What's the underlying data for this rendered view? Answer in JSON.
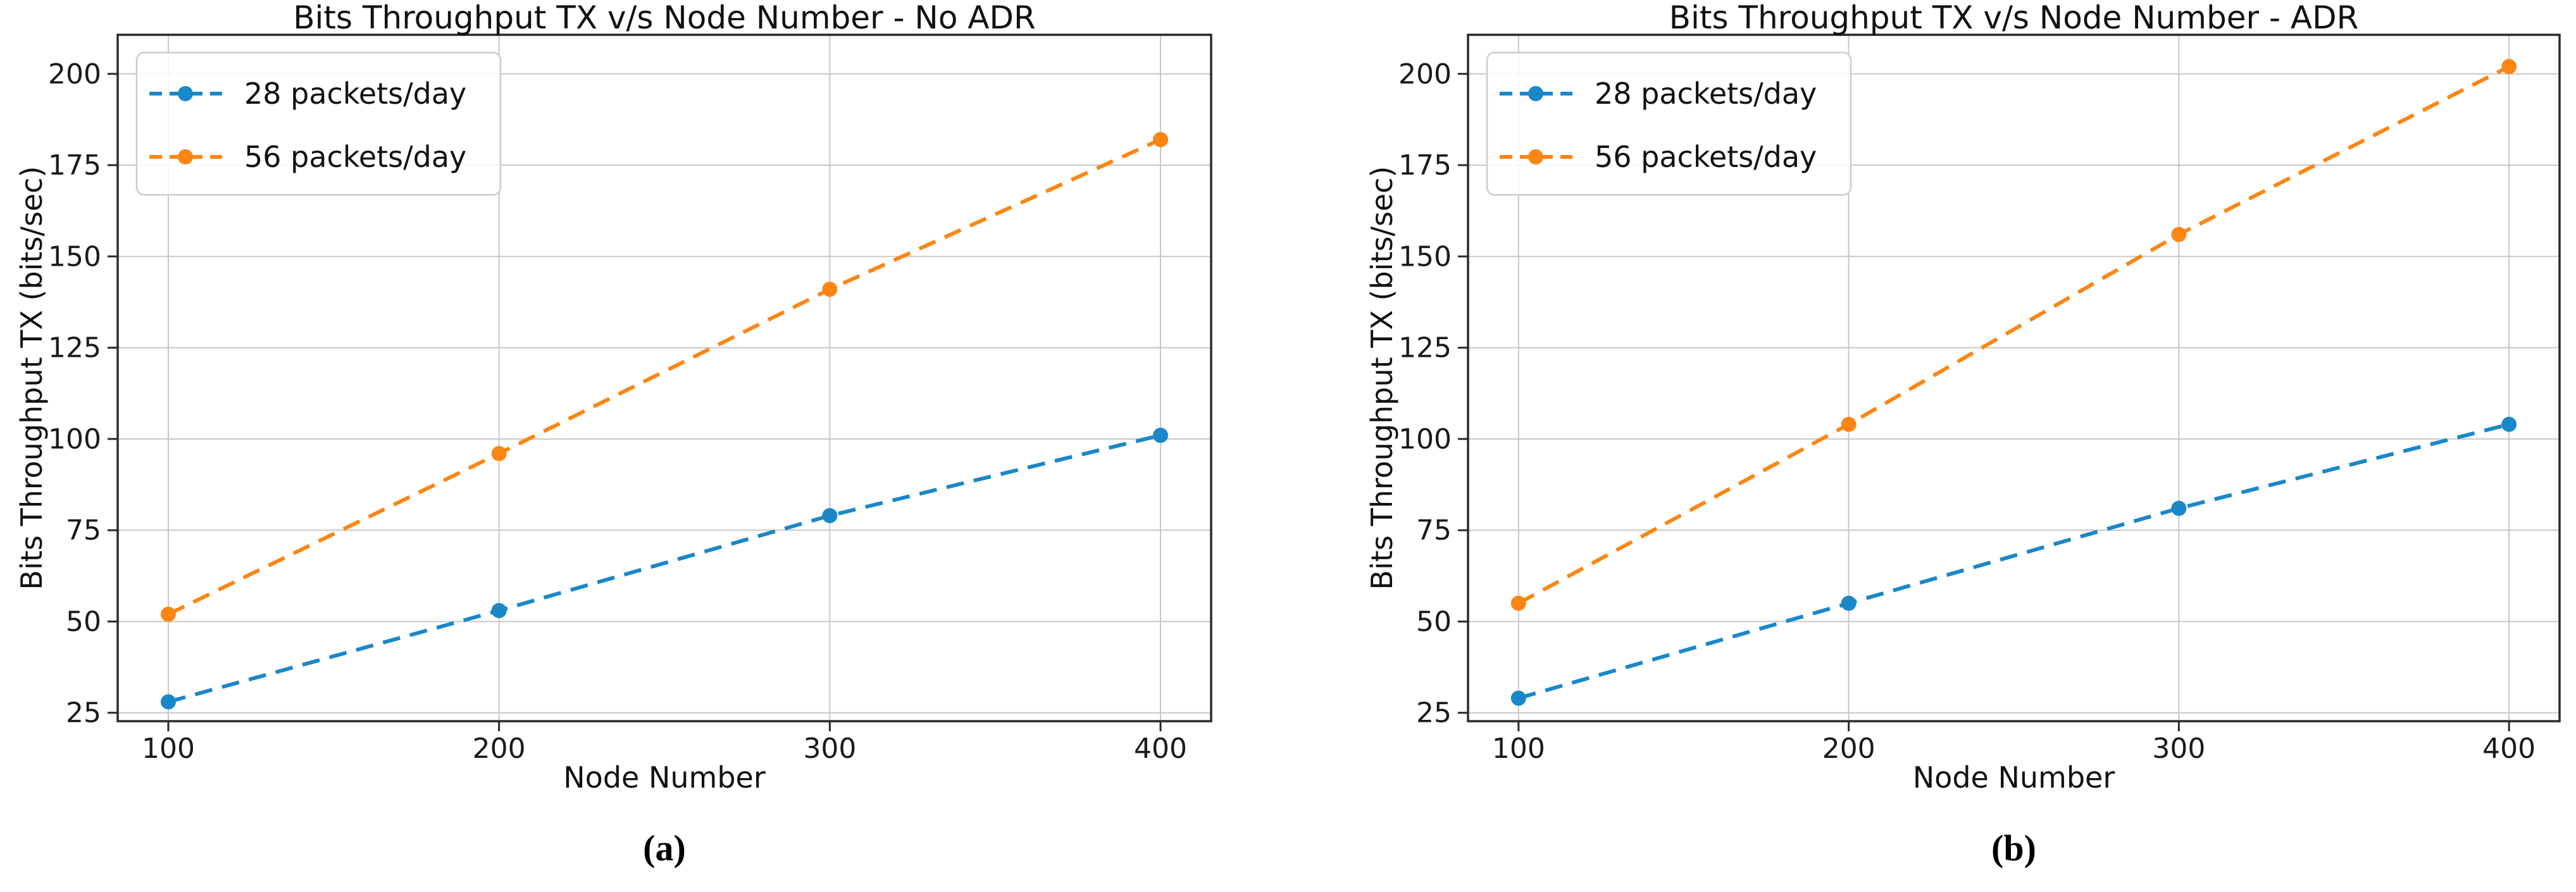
{
  "page": {
    "background": "#ffffff",
    "grid_color": "#c7c7c7",
    "spine_color": "#2a2a2a"
  },
  "chart_data": [
    {
      "type": "line",
      "title": "Bits Throughput TX v/s Node Number - No ADR",
      "caption": "(a)",
      "xlabel": "Node Number",
      "ylabel": "Bits Throughput TX (bits/sec)",
      "x": [
        100,
        200,
        300,
        400
      ],
      "xticks": [
        100,
        200,
        300,
        400
      ],
      "yticks": [
        25,
        50,
        75,
        100,
        125,
        150,
        175,
        200
      ],
      "xlim": [
        84.7,
        415.3
      ],
      "ylim": [
        22.7,
        210.7
      ],
      "grid": true,
      "legend_position": "upper left",
      "series": [
        {
          "name": "28 packets/day",
          "color": "#1a87c9",
          "linestyle": "dashed",
          "marker": "circle",
          "values": [
            28,
            53,
            79,
            101
          ]
        },
        {
          "name": "56 packets/day",
          "color": "#fc8613",
          "linestyle": "dashed",
          "marker": "circle",
          "values": [
            52,
            96,
            141,
            182
          ]
        }
      ]
    },
    {
      "type": "line",
      "title": "Bits Throughput TX v/s Node Number - ADR",
      "caption": "(b)",
      "xlabel": "Node Number",
      "ylabel": "Bits Throughput TX (bits/sec)",
      "x": [
        100,
        200,
        300,
        400
      ],
      "xticks": [
        100,
        200,
        300,
        400
      ],
      "yticks": [
        25,
        50,
        75,
        100,
        125,
        150,
        175,
        200
      ],
      "xlim": [
        84.7,
        415.3
      ],
      "ylim": [
        22.7,
        210.7
      ],
      "grid": true,
      "legend_position": "upper left",
      "series": [
        {
          "name": "28 packets/day",
          "color": "#1a87c9",
          "linestyle": "dashed",
          "marker": "circle",
          "values": [
            29,
            55,
            81,
            104
          ]
        },
        {
          "name": "56 packets/day",
          "color": "#fc8613",
          "linestyle": "dashed",
          "marker": "circle",
          "values": [
            55,
            104,
            156,
            202
          ]
        }
      ]
    }
  ]
}
